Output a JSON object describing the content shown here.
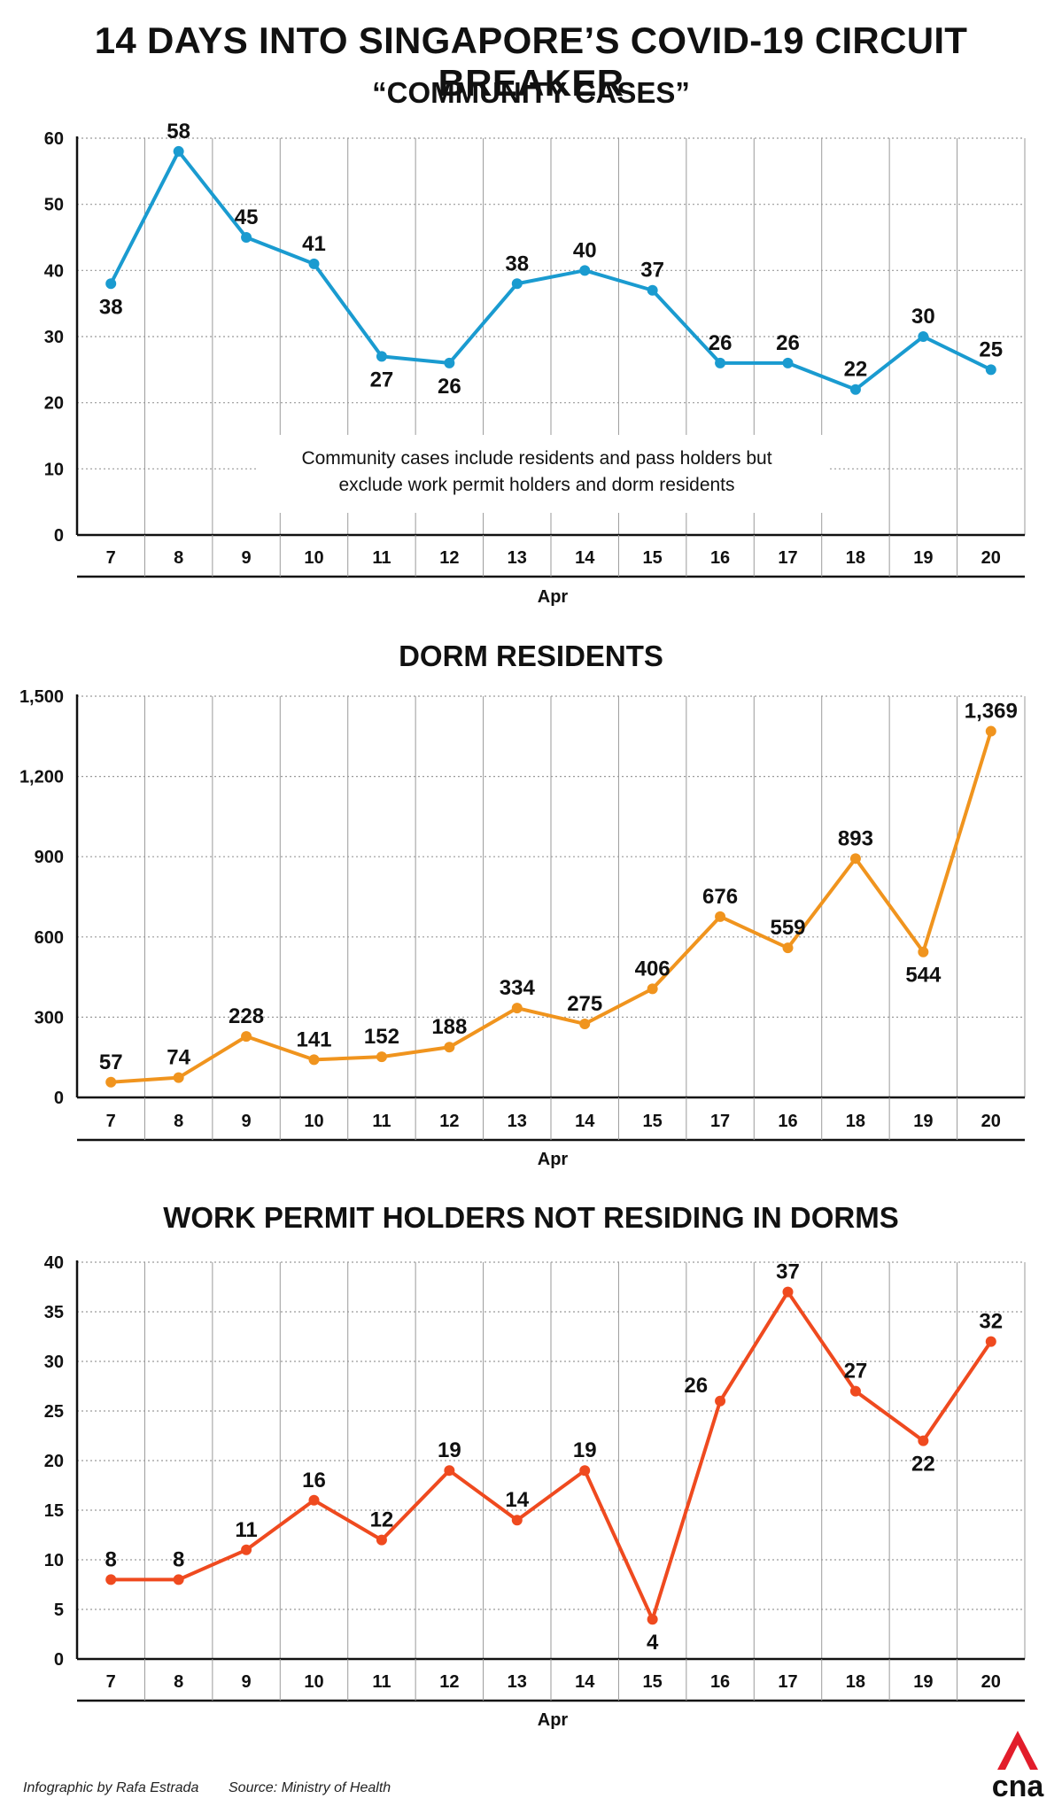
{
  "title": "14 DAYS INTO SINGAPORE’S COVID-19 CIRCUIT BREAKER",
  "chart_data": [
    {
      "type": "line",
      "title": "“COMMUNITY CASES”",
      "categories": [
        "7",
        "8",
        "9",
        "10",
        "11",
        "12",
        "13",
        "14",
        "15",
        "16",
        "17",
        "18",
        "19",
        "20"
      ],
      "values": [
        38,
        58,
        45,
        41,
        27,
        26,
        38,
        40,
        37,
        26,
        26,
        22,
        30,
        25
      ],
      "xlabel": "Apr",
      "ylabel": "",
      "ylim": [
        0,
        60
      ],
      "yticks": [
        0,
        10,
        20,
        30,
        40,
        50,
        60
      ],
      "ytick_labels": [
        "0",
        "10",
        "20",
        "30",
        "40",
        "50",
        "60"
      ],
      "data_labels": [
        "38",
        "58",
        "45",
        "41",
        "27",
        "26",
        "38",
        "40",
        "37",
        "26",
        "26",
        "22",
        "30",
        "25"
      ],
      "label_pos": [
        "below",
        "above",
        "above",
        "above",
        "below",
        "below",
        "above",
        "above",
        "above",
        "above",
        "above",
        "above",
        "above",
        "above"
      ],
      "color": "#1a9bd0",
      "annotation": [
        "Community cases include residents and pass holders but",
        "exclude work permit holders and dorm residents"
      ]
    },
    {
      "type": "line",
      "title": "DORM RESIDENTS",
      "categories": [
        "7",
        "8",
        "9",
        "10",
        "11",
        "12",
        "13",
        "14",
        "15",
        "17",
        "16",
        "18",
        "19",
        "20"
      ],
      "values": [
        57,
        74,
        228,
        141,
        152,
        188,
        334,
        275,
        406,
        676,
        559,
        893,
        544,
        1369
      ],
      "xlabel": "Apr",
      "ylabel": "",
      "ylim": [
        0,
        1500
      ],
      "yticks": [
        0,
        300,
        600,
        900,
        1200,
        1500
      ],
      "ytick_labels": [
        "0",
        "300",
        "600",
        "900",
        "1,200",
        "1,500"
      ],
      "data_labels": [
        "57",
        "74",
        "228",
        "141",
        "152",
        "188",
        "334",
        "275",
        "406",
        "676",
        "559",
        "893",
        "544",
        "1,369"
      ],
      "label_pos": [
        "above",
        "above",
        "above",
        "above",
        "above",
        "above",
        "above",
        "above",
        "above",
        "above",
        "above",
        "above",
        "below",
        "above"
      ],
      "color": "#f0941e"
    },
    {
      "type": "line",
      "title": "WORK PERMIT HOLDERS NOT RESIDING IN DORMS",
      "categories": [
        "7",
        "8",
        "9",
        "10",
        "11",
        "12",
        "13",
        "14",
        "15",
        "16",
        "17",
        "18",
        "19",
        "20"
      ],
      "values": [
        8,
        8,
        11,
        16,
        12,
        19,
        14,
        19,
        4,
        26,
        37,
        27,
        22,
        32
      ],
      "xlabel": "Apr",
      "ylabel": "",
      "ylim": [
        0,
        40
      ],
      "yticks": [
        0,
        5,
        10,
        15,
        20,
        25,
        30,
        35,
        40
      ],
      "ytick_labels": [
        "0",
        "5",
        "10",
        "15",
        "20",
        "25",
        "30",
        "35",
        "40"
      ],
      "data_labels": [
        "8",
        "8",
        "11",
        "16",
        "12",
        "19",
        "14",
        "19",
        "4",
        "26",
        "37",
        "27",
        "22",
        "32"
      ],
      "label_pos": [
        "above",
        "above",
        "above",
        "above",
        "above",
        "above",
        "above",
        "above",
        "below",
        "left",
        "above",
        "above",
        "below",
        "above"
      ],
      "color": "#ef4a1f"
    }
  ],
  "footer": {
    "credit": "Infographic by Rafa Estrada",
    "source": "Source: Ministry of Health"
  },
  "logo": {
    "text": "cna",
    "icon": "cna-logo-icon",
    "color": "#e21d2b"
  }
}
